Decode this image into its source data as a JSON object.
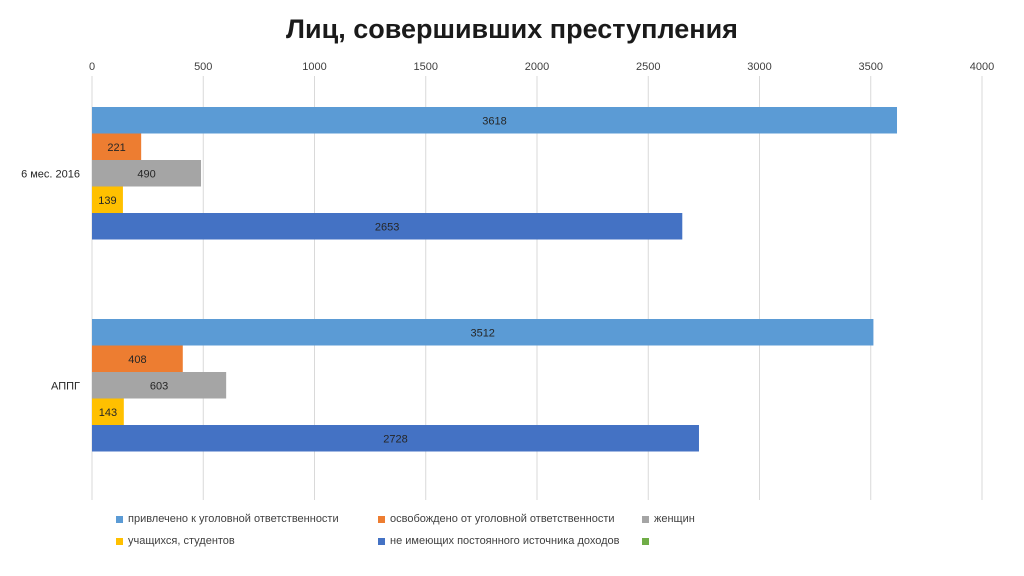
{
  "chart_data": {
    "type": "bar",
    "orientation": "horizontal",
    "title": "Лиц, совершивших преступления",
    "categories": [
      "6 мес. 2016",
      "АППГ"
    ],
    "series": [
      {
        "name": "привлечено к уголовной ответственности",
        "color": "#5b9bd5",
        "values": [
          3618,
          3512
        ]
      },
      {
        "name": "освобождено от уголовной ответственности",
        "color": "#ed7d31",
        "values": [
          221,
          408
        ]
      },
      {
        "name": "женщин",
        "color": "#a5a5a5",
        "values": [
          490,
          603
        ]
      },
      {
        "name": "учащихся, студентов",
        "color": "#ffc000",
        "values": [
          139,
          143
        ]
      },
      {
        "name": "не имеющих постоянного источника доходов",
        "color": "#4472c4",
        "values": [
          2653,
          2728
        ]
      },
      {
        "name": "",
        "color": "#70ad47",
        "values": [
          null,
          null
        ]
      }
    ],
    "x_ticks": [
      "0",
      "500",
      "1000",
      "1500",
      "2000",
      "2500",
      "3000",
      "3500",
      "4000"
    ],
    "xlim": [
      0,
      4000
    ],
    "x_axis_position": "top",
    "grid": true,
    "legend_position": "bottom"
  }
}
